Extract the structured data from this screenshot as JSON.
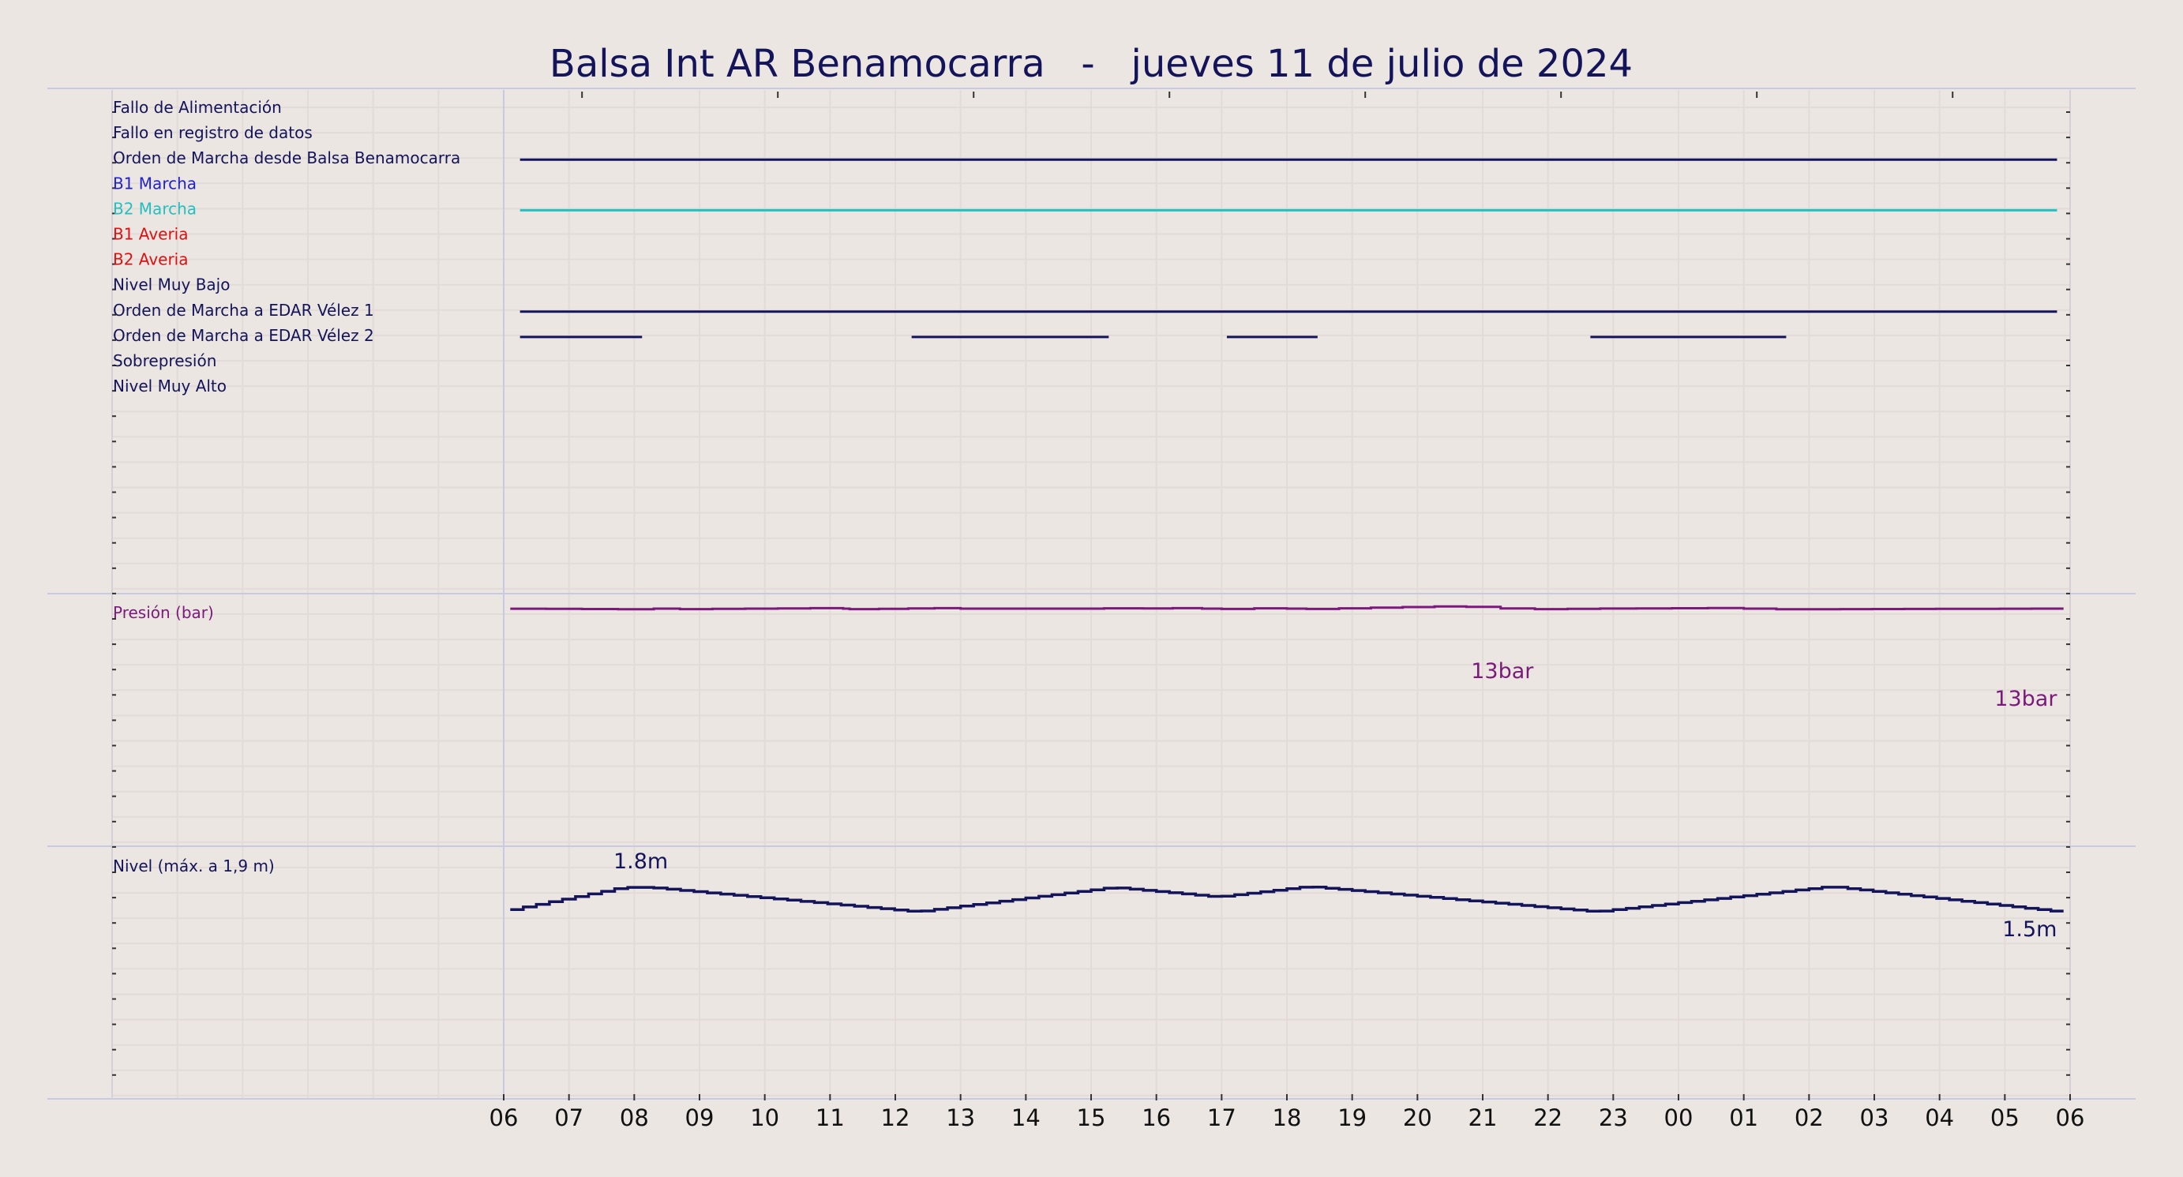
{
  "title": "Balsa Int AR Benamocarra   -   jueves 11 de julio de 2024",
  "chart_data": {
    "type": "line",
    "time_axis_ticks": [
      "06",
      "07",
      "08",
      "09",
      "10",
      "11",
      "12",
      "13",
      "14",
      "15",
      "16",
      "17",
      "18",
      "19",
      "20",
      "21",
      "22",
      "23",
      "00",
      "01",
      "02",
      "03",
      "04",
      "05",
      "06"
    ],
    "time_range_hours": [
      6,
      30
    ],
    "grid": true,
    "signals": [
      {
        "name": "Fallo de Alimentación",
        "color": "#14145a",
        "on_intervals": []
      },
      {
        "name": "Fallo en registro de datos",
        "color": "#14145a",
        "on_intervals": []
      },
      {
        "name": "Orden de Marcha desde Balsa Benamocarra",
        "color": "#14145a",
        "on_intervals": [
          [
            6.25,
            29.8
          ]
        ]
      },
      {
        "name": "B1 Marcha",
        "color": "#2222cc",
        "on_intervals": []
      },
      {
        "name": "B2 Marcha",
        "color": "#22c0c0",
        "on_intervals": [
          [
            6.25,
            29.8
          ]
        ]
      },
      {
        "name": "B1 Averia",
        "color": "#dd1111",
        "on_intervals": []
      },
      {
        "name": "B2 Averia",
        "color": "#dd1111",
        "on_intervals": []
      },
      {
        "name": "Nivel Muy Bajo",
        "color": "#14145a",
        "on_intervals": []
      },
      {
        "name": "Orden de Marcha a EDAR Vélez 1",
        "color": "#14145a",
        "on_intervals": [
          [
            6.25,
            29.8
          ]
        ]
      },
      {
        "name": "Orden de Marcha a EDAR Vélez 2",
        "color": "#14145a",
        "on_intervals": [
          [
            6.25,
            8.12
          ],
          [
            12.25,
            15.27
          ],
          [
            17.08,
            18.47
          ],
          [
            22.65,
            25.65
          ]
        ]
      },
      {
        "name": "Sobrepresión",
        "color": "#14145a",
        "on_intervals": []
      },
      {
        "name": "Nivel Muy Alto",
        "color": "#14145a",
        "on_intervals": []
      }
    ],
    "pressure": {
      "label": "Presión (bar)",
      "color": "#7a1a7a",
      "unit": "bar",
      "ylim": [
        0,
        20
      ],
      "points": [
        [
          6.1,
          13.0
        ],
        [
          8.3,
          12.95
        ],
        [
          8.5,
          13.05
        ],
        [
          8.7,
          12.95
        ],
        [
          11.2,
          13.05
        ],
        [
          11.3,
          12.95
        ],
        [
          12.2,
          13.0
        ],
        [
          13.0,
          13.05
        ],
        [
          13.7,
          12.95
        ],
        [
          14.3,
          13.05
        ],
        [
          14.6,
          12.95
        ],
        [
          15.2,
          13.05
        ],
        [
          15.8,
          13.0
        ],
        [
          16.7,
          13.05
        ],
        [
          17.0,
          12.95
        ],
        [
          18.0,
          13.05
        ],
        [
          18.3,
          12.95
        ],
        [
          18.8,
          13.0
        ],
        [
          20.75,
          13.2
        ],
        [
          21.8,
          12.95
        ],
        [
          22.8,
          13.0
        ],
        [
          25.0,
          13.05
        ],
        [
          25.5,
          12.95
        ],
        [
          29.9,
          13.0
        ]
      ],
      "annotations": [
        {
          "text": "13bar",
          "x": 21.3,
          "y": 13
        },
        {
          "text": "13bar",
          "x": 29.8,
          "y": 13
        }
      ]
    },
    "level": {
      "label": "Nivel (máx. a 1,9 m)",
      "color": "#14145a",
      "unit": "m",
      "ylim": [
        0,
        1.9
      ],
      "points": [
        [
          6.1,
          1.53
        ],
        [
          7.9,
          1.8
        ],
        [
          8.3,
          1.8
        ],
        [
          12.4,
          1.52
        ],
        [
          15.4,
          1.8
        ],
        [
          17.0,
          1.69
        ],
        [
          18.4,
          1.81
        ],
        [
          22.8,
          1.52
        ],
        [
          26.4,
          1.81
        ],
        [
          29.9,
          1.52
        ]
      ],
      "annotations": [
        {
          "text": "1.8m",
          "x": 8.1,
          "y": 1.8
        },
        {
          "text": "1.5m",
          "x": 29.8,
          "y": 1.5
        }
      ]
    }
  }
}
